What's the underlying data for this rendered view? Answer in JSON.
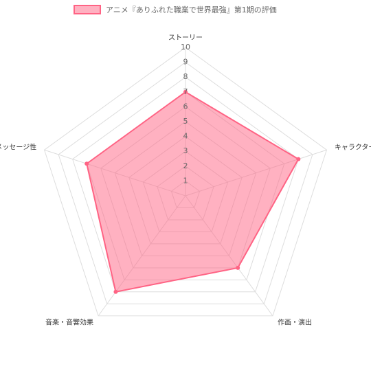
{
  "chart_data": {
    "type": "radar",
    "categories": [
      "ストーリー",
      "キャラクター",
      "作画・演出",
      "音楽・音響効果",
      "メッセージ性"
    ],
    "series": [
      {
        "name": "アニメ『ありふれた職業で世界最強』第1期の評価",
        "color": "#ff6384",
        "values": [
          7,
          8,
          6,
          8,
          7
        ]
      }
    ],
    "rlim": [
      0,
      10
    ],
    "rticks": [
      1,
      2,
      3,
      4,
      5,
      6,
      7,
      8,
      9,
      10
    ],
    "grid": true,
    "legend": "top"
  }
}
